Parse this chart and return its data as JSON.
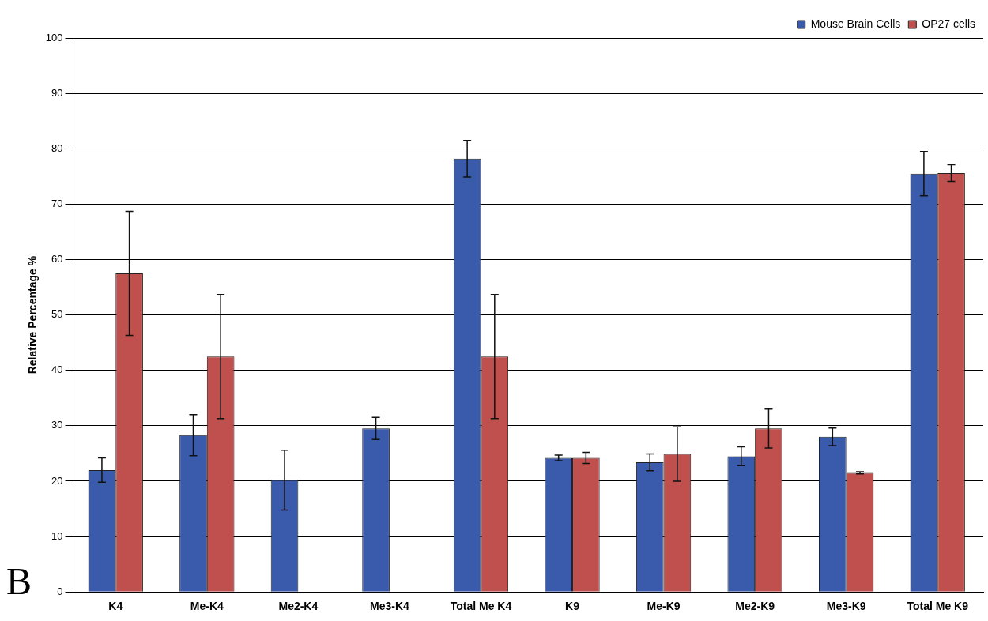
{
  "chart_data": {
    "type": "bar",
    "categories": [
      "K4",
      "Me-K4",
      "Me2-K4",
      "Me3-K4",
      "Total Me K4",
      "K9",
      "Me-K9",
      "Me2-K9",
      "Me3-K9",
      "Total Me K9"
    ],
    "series": [
      {
        "name": "Mouse Brain Cells",
        "color": "#3a5bab",
        "values": [
          22,
          28.3,
          20.2,
          29.5,
          78.2,
          24.2,
          23.4,
          24.5,
          28,
          75.5
        ],
        "errors": [
          2.2,
          3.7,
          5.4,
          2,
          3.3,
          0.5,
          1.5,
          1.7,
          1.6,
          4
        ]
      },
      {
        "name": "OP27 cells",
        "color": "#c0504d",
        "values": [
          57.5,
          42.5,
          null,
          null,
          42.5,
          24.2,
          24.9,
          29.5,
          21.5,
          75.6
        ],
        "errors": [
          11.2,
          11.2,
          null,
          null,
          11.2,
          1,
          4.9,
          3.5,
          0.2,
          1.5
        ]
      }
    ],
    "ylabel": "Relative Percentage %",
    "ylim": [
      0,
      100
    ],
    "yticks": [
      0,
      10,
      20,
      30,
      40,
      50,
      60,
      70,
      80,
      90,
      100
    ],
    "grid": "y",
    "legend": "top right",
    "annotations": [
      "B"
    ]
  }
}
